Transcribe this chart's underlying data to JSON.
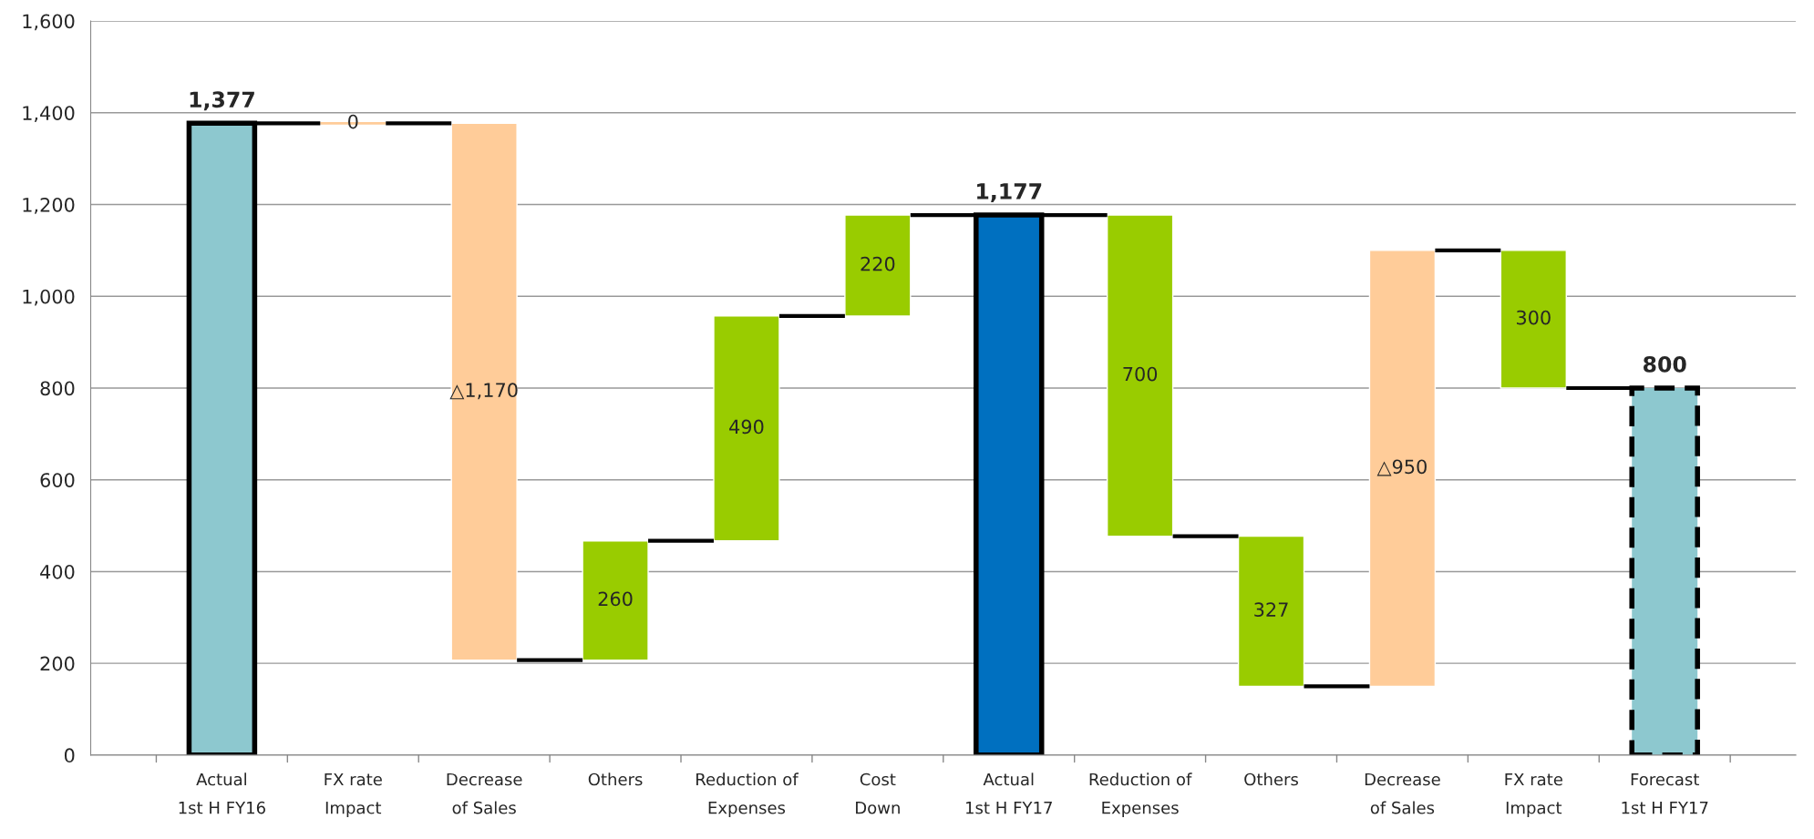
{
  "chart_data": {
    "type": "bar",
    "categories": [
      "Actual\n1st H FY16",
      "FX rate\nImpact",
      "Decrease\nof Sales",
      "Others",
      "Reduction of\nExpenses",
      "Cost\nDown",
      "Actual\n1st H FY17",
      "Reduction of\nExpenses",
      "Others",
      "Decrease\nof Sales",
      "FX rate\nImpact",
      "Forecast\n1st H FY17"
    ],
    "series": [
      {
        "values": [
          1377,
          null,
          null,
          null,
          null,
          null,
          1177,
          null,
          null,
          null,
          null,
          null
        ],
        "colors": [
          "#8dc8cf",
          null,
          null,
          null,
          null,
          null,
          "#0070c0",
          null,
          null,
          null,
          null,
          null
        ],
        "value_labels": [
          "1,377",
          null,
          null,
          null,
          null,
          null,
          "1,177",
          null,
          null,
          null,
          null,
          null
        ],
        "line_style": "solid"
      },
      {
        "values": [
          null,
          0,
          -1170,
          260,
          490,
          220,
          null,
          -700,
          -327,
          950,
          -300,
          null
        ],
        "base": [
          null,
          1377,
          1377,
          207,
          467,
          957,
          null,
          1177,
          477,
          150,
          1100,
          null
        ],
        "colors": [
          null,
          "#ffcc99",
          "#ffcc99",
          "#99cc00",
          "#99cc00",
          "#99cc00",
          null,
          "#99cc00",
          "#99cc00",
          "#ffcc99",
          "#99cc00",
          null
        ],
        "value_labels": [
          null,
          "0",
          "△1,170",
          "260",
          "490",
          "220",
          null,
          "700",
          "327",
          "△950",
          "300",
          null
        ]
      },
      {
        "values": [
          null,
          null,
          null,
          null,
          null,
          null,
          null,
          null,
          null,
          null,
          null,
          800
        ],
        "colors": [
          null,
          null,
          null,
          null,
          null,
          null,
          null,
          null,
          null,
          null,
          null,
          "#8dc8cf"
        ],
        "value_labels": [
          null,
          null,
          null,
          null,
          null,
          null,
          null,
          null,
          null,
          null,
          null,
          "800"
        ],
        "line_style": "dashed"
      }
    ],
    "ylim": [
      0,
      1600
    ],
    "yticks": [
      {
        "value": 0,
        "label": "0"
      },
      {
        "value": 200,
        "label": "200"
      },
      {
        "value": 400,
        "label": "400"
      },
      {
        "value": 600,
        "label": "600"
      },
      {
        "value": 800,
        "label": "800"
      },
      {
        "value": 1000,
        "label": "1,000"
      },
      {
        "value": 1200,
        "label": "1,200"
      },
      {
        "value": 1400,
        "label": "1,400"
      },
      {
        "value": 1600,
        "label": "1,600"
      }
    ],
    "grid": "y"
  }
}
